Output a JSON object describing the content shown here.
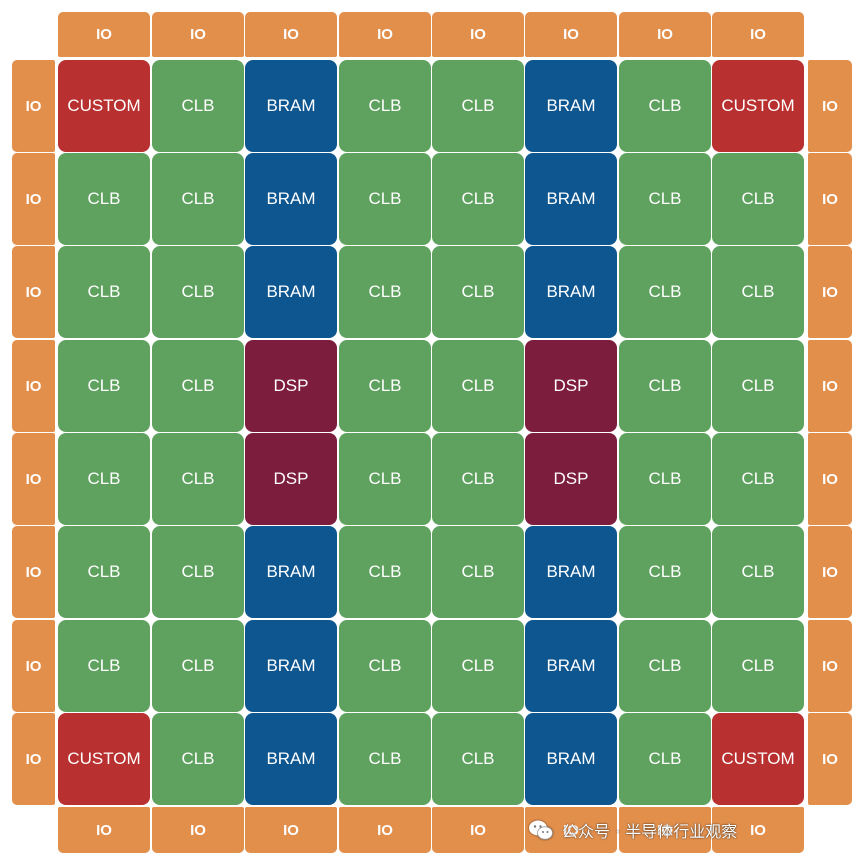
{
  "colors": {
    "IO": "#e28f4c",
    "CLB": "#5fa25f",
    "BRAM": "#0e5690",
    "DSP": "#7d1d3e",
    "CUSTOM": "#b8302f"
  },
  "io_label": "IO",
  "top_row": [
    "IO",
    "IO",
    "IO",
    "IO",
    "IO",
    "IO",
    "IO",
    "IO"
  ],
  "bottom_row": [
    "IO",
    "IO",
    "IO",
    "IO",
    "IO",
    "IO",
    "IO",
    "IO"
  ],
  "left_column": [
    "IO",
    "IO",
    "IO",
    "IO",
    "IO",
    "IO",
    "IO",
    "IO"
  ],
  "right_column": [
    "IO",
    "IO",
    "IO",
    "IO",
    "IO",
    "IO",
    "IO",
    "IO"
  ],
  "grid": [
    [
      "CUSTOM",
      "CLB",
      "BRAM",
      "CLB",
      "CLB",
      "BRAM",
      "CLB",
      "CUSTOM"
    ],
    [
      "CLB",
      "CLB",
      "BRAM",
      "CLB",
      "CLB",
      "BRAM",
      "CLB",
      "CLB"
    ],
    [
      "CLB",
      "CLB",
      "BRAM",
      "CLB",
      "CLB",
      "BRAM",
      "CLB",
      "CLB"
    ],
    [
      "CLB",
      "CLB",
      "DSP",
      "CLB",
      "CLB",
      "DSP",
      "CLB",
      "CLB"
    ],
    [
      "CLB",
      "CLB",
      "DSP",
      "CLB",
      "CLB",
      "DSP",
      "CLB",
      "CLB"
    ],
    [
      "CLB",
      "CLB",
      "BRAM",
      "CLB",
      "CLB",
      "BRAM",
      "CLB",
      "CLB"
    ],
    [
      "CLB",
      "CLB",
      "BRAM",
      "CLB",
      "CLB",
      "BRAM",
      "CLB",
      "CLB"
    ],
    [
      "CUSTOM",
      "CLB",
      "BRAM",
      "CLB",
      "CLB",
      "BRAM",
      "CLB",
      "CUSTOM"
    ]
  ],
  "watermark": {
    "icon": "wechat-icon",
    "text": "公众号 · 半导体行业观察"
  }
}
